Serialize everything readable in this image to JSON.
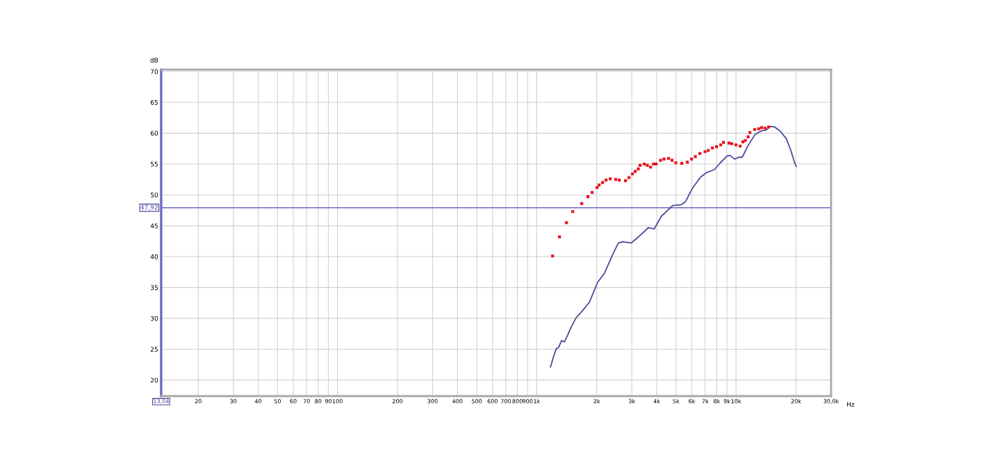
{
  "chart_data": {
    "type": "line",
    "xlabel": "Hz",
    "ylabel": "dB",
    "log": "x",
    "grid": true,
    "legend": false,
    "xlim": [
      13.04,
      30000
    ],
    "ylim": [
      17.4,
      70.3
    ],
    "xticks": [
      {
        "value": 13.04,
        "label": "13,04"
      },
      20,
      30,
      40,
      50,
      60,
      70,
      80,
      90,
      100,
      200,
      300,
      400,
      500,
      600,
      700,
      800,
      900,
      {
        "value": 1000,
        "label": "1k"
      },
      {
        "value": 2000,
        "label": "2k"
      },
      {
        "value": 3000,
        "label": "3k"
      },
      {
        "value": 4000,
        "label": "4k"
      },
      {
        "value": 5000,
        "label": "5k"
      },
      {
        "value": 6000,
        "label": "6k"
      },
      {
        "value": 7000,
        "label": "7k"
      },
      {
        "value": 8000,
        "label": "8k"
      },
      {
        "value": 9000,
        "label": "9k"
      },
      {
        "value": 10000,
        "label": "10k"
      },
      {
        "value": 20000,
        "label": "20k"
      },
      {
        "value": 30000,
        "label": "30,0k"
      }
    ],
    "yticks": [
      20,
      25,
      30,
      35,
      40,
      45,
      50,
      55,
      60,
      65,
      70
    ],
    "ref_lines": [
      {
        "axis": "y",
        "value": 47.92,
        "label": "47,92",
        "color": "#7b7bc4"
      }
    ],
    "series": [
      {
        "type": "scatter",
        "marker": "square",
        "color": "#e8141e",
        "x": [
          1201,
          1301,
          1410,
          1515,
          1682,
          1808,
          1897,
          2007,
          2056,
          2140,
          2228,
          2338,
          2493,
          2595,
          2790,
          2904,
          3023,
          3122,
          3233,
          3301,
          3464,
          3589,
          3724,
          3857,
          3971,
          4180,
          4351,
          4588,
          4776,
          4988,
          5345,
          5700,
          5983,
          6248,
          6587,
          6991,
          7254,
          7612,
          7986,
          8380,
          8651,
          9226,
          9528,
          9998,
          10490,
          10830,
          11130,
          11500,
          11740,
          12420,
          13000,
          13460,
          14010,
          14580
        ],
        "values": [
          40.1,
          43.2,
          45.5,
          47.3,
          48.6,
          49.7,
          50.4,
          51.2,
          51.6,
          52.0,
          52.4,
          52.6,
          52.5,
          52.4,
          52.3,
          52.8,
          53.4,
          53.8,
          54.2,
          54.8,
          55.0,
          54.8,
          54.5,
          55.0,
          55.0,
          55.6,
          55.8,
          55.9,
          55.6,
          55.2,
          55.1,
          55.3,
          55.8,
          56.2,
          56.7,
          57.0,
          57.2,
          57.6,
          57.8,
          58.1,
          58.5,
          58.4,
          58.3,
          58.1,
          57.9,
          58.6,
          58.8,
          59.4,
          60.1,
          60.6,
          60.7,
          60.9,
          60.8,
          61.0
        ]
      },
      {
        "marker": "none",
        "color": "#4b4a9a",
        "x": [
          1172,
          1214,
          1254,
          1287,
          1332,
          1376,
          1426,
          1484,
          1577,
          1682,
          1837,
          2018,
          2187,
          2402,
          2568,
          2710,
          2974,
          3268,
          3636,
          3889,
          4213,
          4815,
          5289,
          5582,
          6049,
          6641,
          7101,
          7796,
          8340,
          9035,
          9330,
          9840,
          10320,
          10750,
          11500,
          12460,
          13500,
          14160,
          14820,
          15640,
          16710,
          17880,
          18850,
          19630,
          20060
        ],
        "values": [
          22.1,
          23.8,
          25.1,
          25.3,
          26.4,
          26.2,
          27.2,
          28.5,
          30.1,
          31.1,
          32.6,
          35.8,
          37.3,
          40.3,
          42.2,
          42.4,
          42.2,
          43.3,
          44.7,
          44.5,
          46.5,
          48.3,
          48.4,
          48.9,
          51.1,
          52.9,
          53.6,
          54.1,
          55.2,
          56.3,
          56.4,
          55.8,
          56.1,
          56.1,
          58.0,
          59.8,
          60.4,
          60.5,
          61.1,
          61.0,
          60.3,
          59.1,
          57.2,
          55.3,
          54.6
        ]
      }
    ]
  }
}
